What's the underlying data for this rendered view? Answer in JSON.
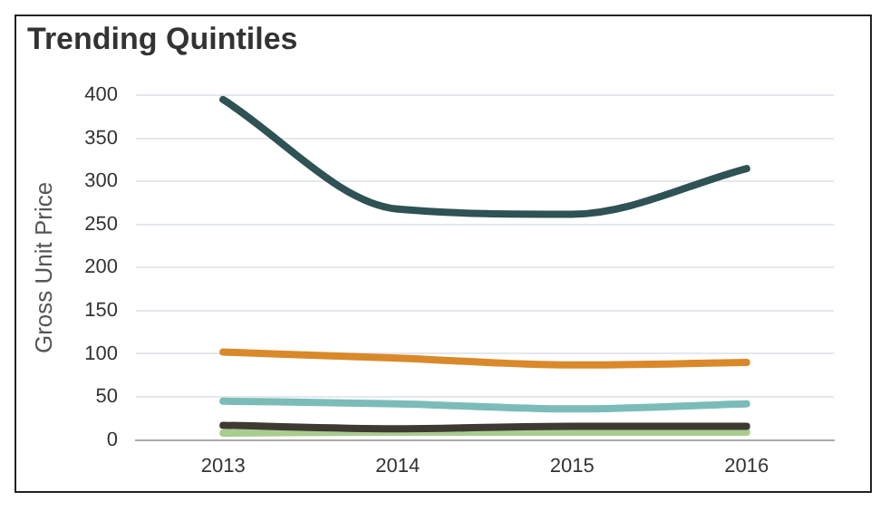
{
  "chart_data": {
    "type": "line",
    "title": "Trending Quintiles",
    "ylabel": "Gross Unit Price",
    "categories": [
      "2013",
      "2014",
      "2015",
      "2016"
    ],
    "series": [
      {
        "color": "#2f5254",
        "values": [
          395,
          268,
          262,
          315
        ]
      },
      {
        "color": "#d9892a",
        "values": [
          102,
          95,
          87,
          90
        ]
      },
      {
        "color": "#7bbcb8",
        "values": [
          45,
          42,
          36,
          42
        ]
      },
      {
        "color": "#3e3a33",
        "values": [
          17,
          13,
          16,
          16
        ]
      },
      {
        "color": "#a9cc8f",
        "values": [
          8,
          9,
          9,
          9
        ]
      }
    ],
    "ylim": [
      0,
      400
    ],
    "yticks": [
      0,
      50,
      100,
      150,
      200,
      250,
      300,
      350,
      400
    ],
    "grid": "y",
    "legend": false,
    "marker": "none"
  }
}
